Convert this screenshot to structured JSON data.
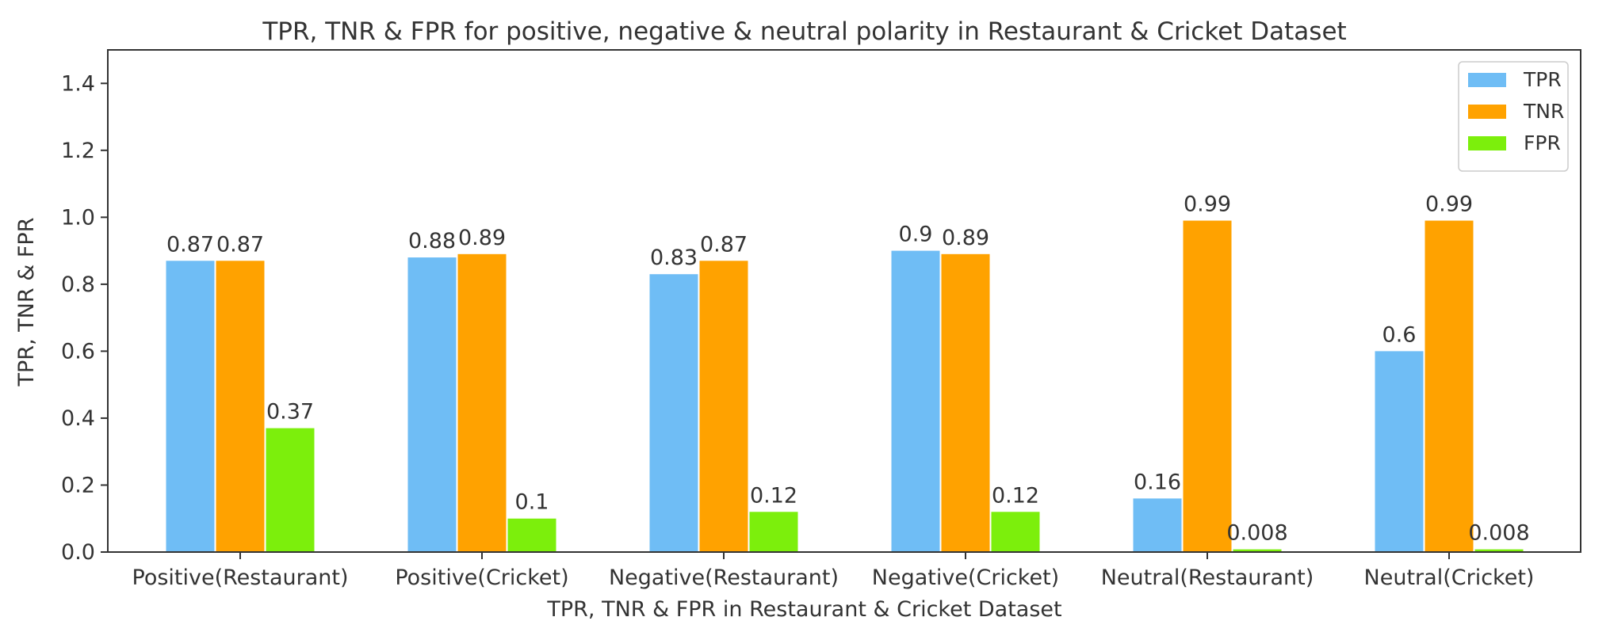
{
  "chart_data": {
    "type": "bar",
    "title": "TPR, TNR & FPR for positive, negative & neutral polarity in Restaurant & Cricket Dataset",
    "xlabel": "TPR, TNR & FPR in Restaurant & Cricket Dataset",
    "ylabel": "TPR, TNR & FPR",
    "ylim": [
      0,
      1.5
    ],
    "yticks": [
      "0.0",
      "0.2",
      "0.4",
      "0.6",
      "0.8",
      "1.0",
      "1.2",
      "1.4"
    ],
    "categories": [
      "Positive(Restaurant)",
      "Positive(Cricket)",
      "Negative(Restaurant)",
      "Negative(Cricket)",
      "Neutral(Restaurant)",
      "Neutral(Cricket)"
    ],
    "series": [
      {
        "name": "TPR",
        "color": "#6fbdf5",
        "values": [
          0.87,
          0.88,
          0.83,
          0.9,
          0.16,
          0.6
        ],
        "labels": [
          "0.87",
          "0.88",
          "0.83",
          "0.9",
          "0.16",
          "0.6"
        ]
      },
      {
        "name": "TNR",
        "color": "#ffa200",
        "values": [
          0.87,
          0.89,
          0.87,
          0.89,
          0.99,
          0.99
        ],
        "labels": [
          "0.87",
          "0.89",
          "0.87",
          "0.89",
          "0.99",
          "0.99"
        ]
      },
      {
        "name": "FPR",
        "color": "#7cef0c",
        "values": [
          0.37,
          0.1,
          0.12,
          0.12,
          0.008,
          0.008
        ],
        "labels": [
          "0.37",
          "0.1",
          "0.12",
          "0.12",
          "0.008",
          "0.008"
        ]
      }
    ],
    "legend_position": "top-right",
    "grid": false
  }
}
